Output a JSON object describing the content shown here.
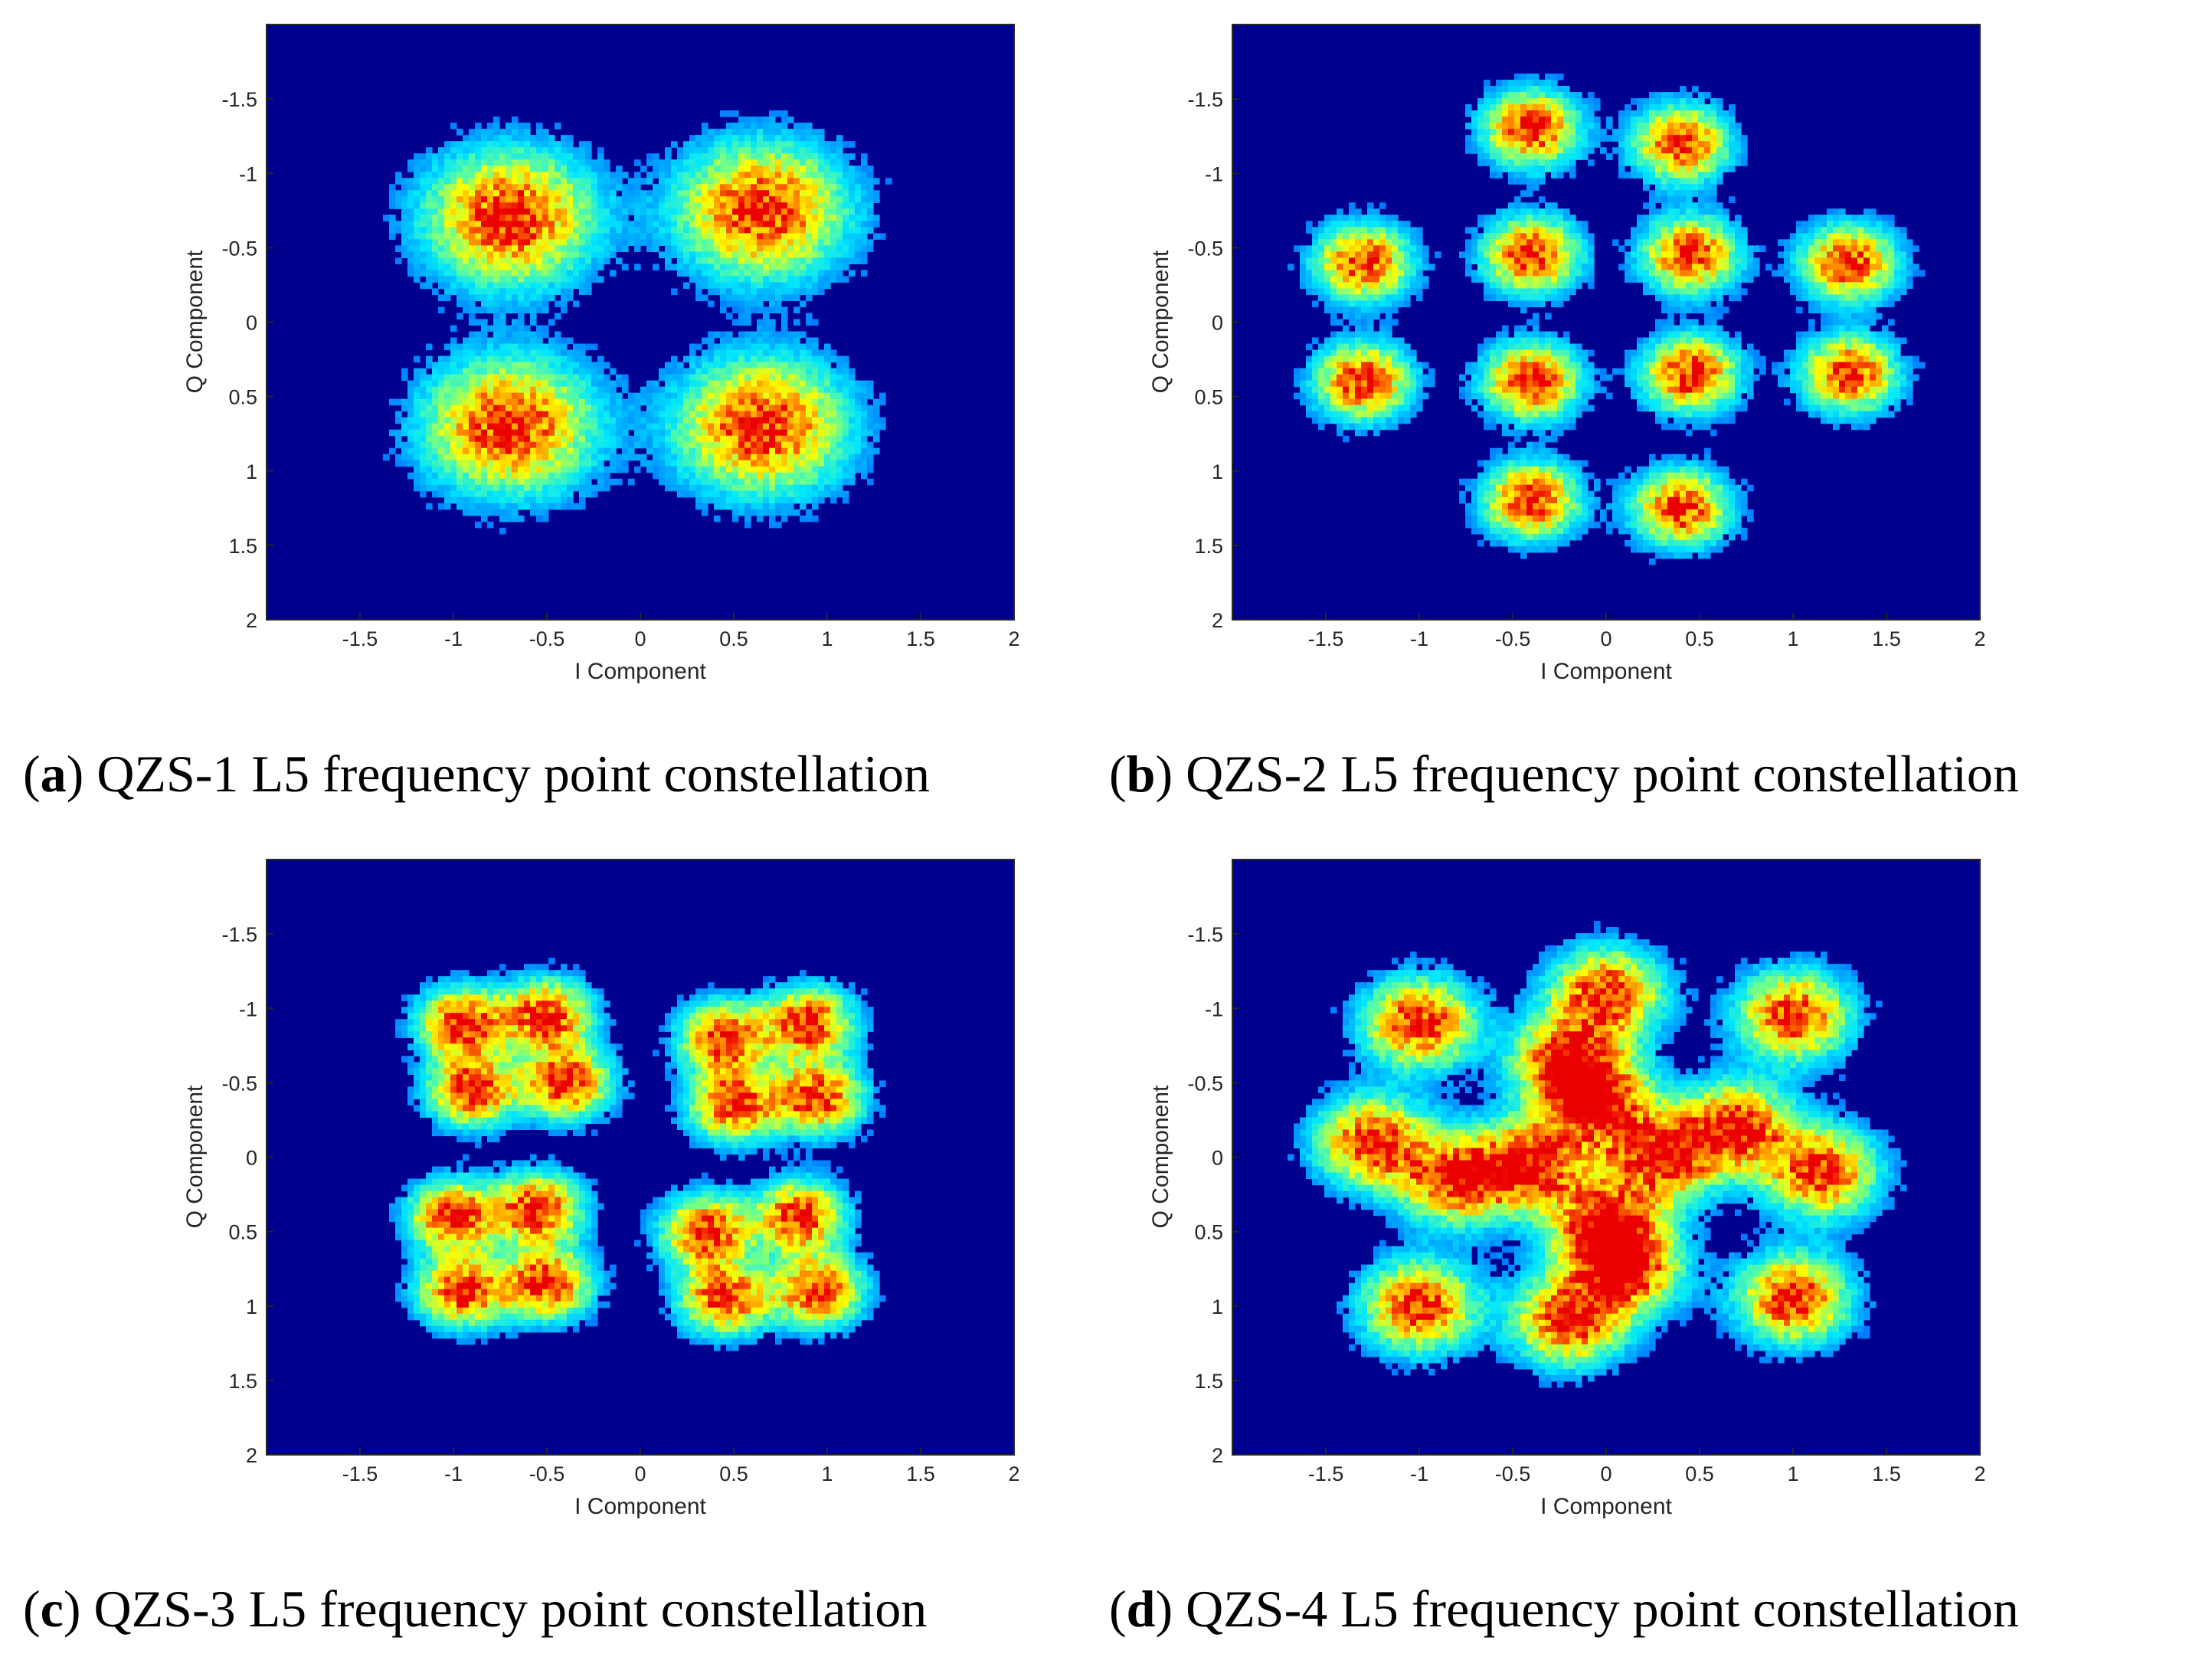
{
  "colors": {
    "background": "#00008f",
    "density_colormap": [
      "#0000ff",
      "#00ffff",
      "#7fff7f",
      "#ffff00",
      "#ff7f00",
      "#ff0000"
    ]
  },
  "chart_data": [
    {
      "id": "a",
      "type": "heatmap",
      "xlabel": "I Component",
      "ylabel": "Q Component",
      "xlim": [
        -2,
        2
      ],
      "ylim": [
        -2,
        2
      ],
      "y_axis_reversed": true,
      "xticks": [
        -1.5,
        -1,
        -0.5,
        0,
        0.5,
        1,
        1.5,
        2
      ],
      "yticks": [
        -1.5,
        -1,
        -0.5,
        0,
        0.5,
        1,
        1.5,
        2
      ],
      "cluster_centers": [
        [
          -0.7,
          -0.7
        ],
        [
          0.65,
          -0.75
        ],
        [
          -0.7,
          0.7
        ],
        [
          0.65,
          0.7
        ]
      ],
      "cluster_spread": 0.3,
      "grid": false,
      "caption_letter": "a",
      "caption_text": "QZS-1 L5 frequency point constellation"
    },
    {
      "id": "b",
      "type": "heatmap",
      "xlabel": "I Component",
      "ylabel": "Q Component",
      "xlim": [
        -2,
        2
      ],
      "ylim": [
        -2,
        2
      ],
      "y_axis_reversed": true,
      "xticks": [
        -1.5,
        -1,
        -0.5,
        0,
        0.5,
        1,
        1.5,
        2
      ],
      "yticks": [
        -1.5,
        -1,
        -0.5,
        0,
        0.5,
        1,
        1.5,
        2
      ],
      "cluster_centers": [
        [
          -0.4,
          -1.3
        ],
        [
          0.4,
          -1.2
        ],
        [
          -1.3,
          -0.4
        ],
        [
          -0.4,
          -0.45
        ],
        [
          0.45,
          -0.45
        ],
        [
          1.3,
          -0.4
        ],
        [
          -1.3,
          0.4
        ],
        [
          -0.4,
          0.4
        ],
        [
          0.45,
          0.35
        ],
        [
          1.3,
          0.35
        ],
        [
          -0.4,
          1.2
        ],
        [
          0.4,
          1.25
        ]
      ],
      "cluster_spread": 0.17,
      "grid": false,
      "caption_letter": "b",
      "caption_text": "QZS-2 L5 frequency point constellation"
    },
    {
      "id": "c",
      "type": "heatmap",
      "xlabel": "I Component",
      "ylabel": "Q Component",
      "xlim": [
        -2,
        2
      ],
      "ylim": [
        -2,
        2
      ],
      "y_axis_reversed": true,
      "xticks": [
        -1.5,
        -1,
        -0.5,
        0,
        0.5,
        1,
        1.5,
        2
      ],
      "yticks": [
        -1.5,
        -1,
        -0.5,
        0,
        0.5,
        1,
        1.5,
        2
      ],
      "cluster_centers": [
        [
          -0.95,
          -0.9
        ],
        [
          -0.5,
          -0.95
        ],
        [
          -0.9,
          -0.45
        ],
        [
          -0.4,
          -0.5
        ],
        [
          0.45,
          -0.8
        ],
        [
          0.9,
          -0.9
        ],
        [
          0.5,
          -0.35
        ],
        [
          0.95,
          -0.4
        ],
        [
          -1.0,
          0.4
        ],
        [
          -0.55,
          0.35
        ],
        [
          -0.95,
          0.9
        ],
        [
          -0.5,
          0.85
        ],
        [
          0.35,
          0.5
        ],
        [
          0.85,
          0.4
        ],
        [
          0.45,
          0.95
        ],
        [
          0.95,
          0.9
        ]
      ],
      "cluster_spread": 0.16,
      "grid": false,
      "caption_letter": "c",
      "caption_text": "QZS-3 L5 frequency point constellation"
    },
    {
      "id": "d",
      "type": "heatmap",
      "xlabel": "I Component",
      "ylabel": "Q Component",
      "xlim": [
        -2,
        2
      ],
      "ylim": [
        -2,
        2
      ],
      "y_axis_reversed": true,
      "xticks": [
        -1.5,
        -1,
        -0.5,
        0,
        0.5,
        1,
        1.5,
        2
      ],
      "yticks": [
        -1.5,
        -1,
        -0.5,
        0,
        0.5,
        1,
        1.5,
        2
      ],
      "cluster_centers": [
        [
          -1.0,
          -0.9
        ],
        [
          0.0,
          -1.1
        ],
        [
          1.0,
          -0.95
        ],
        [
          -0.2,
          -0.65
        ],
        [
          -0.05,
          -0.35
        ],
        [
          -1.25,
          -0.1
        ],
        [
          0.7,
          -0.2
        ],
        [
          -0.8,
          0.15
        ],
        [
          -0.4,
          0.05
        ],
        [
          0.3,
          0.0
        ],
        [
          1.15,
          0.1
        ],
        [
          0.0,
          0.45
        ],
        [
          0.1,
          0.75
        ],
        [
          -1.0,
          1.0
        ],
        [
          -0.2,
          1.1
        ],
        [
          1.0,
          0.95
        ]
      ],
      "cluster_spread": 0.2,
      "grid": false,
      "caption_letter": "d",
      "caption_text": "QZS-4 L5 frequency point constellation"
    }
  ]
}
